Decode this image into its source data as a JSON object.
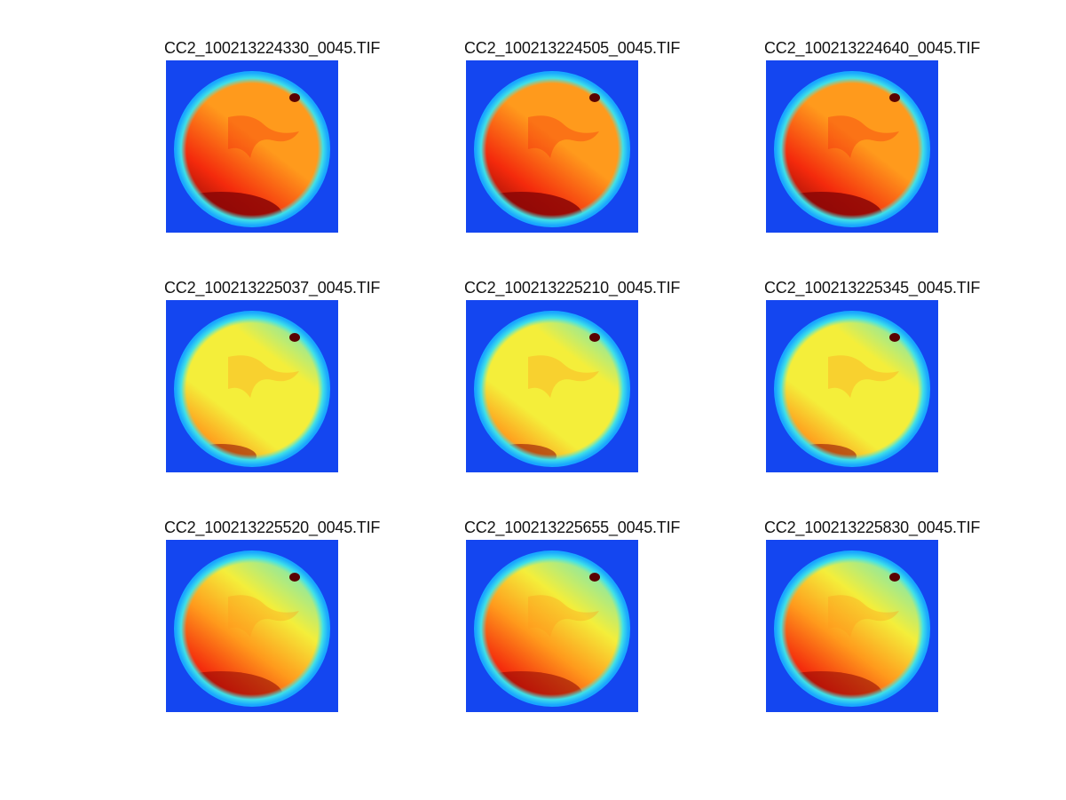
{
  "figure": {
    "panels": [
      {
        "title": "CC2_100213224330_0045.TIF",
        "palette": "hot"
      },
      {
        "title": "CC2_100213224505_0045.TIF",
        "palette": "hot"
      },
      {
        "title": "CC2_100213224640_0045.TIF",
        "palette": "hot"
      },
      {
        "title": "CC2_100213225037_0045.TIF",
        "palette": "cool"
      },
      {
        "title": "CC2_100213225210_0045.TIF",
        "palette": "cool"
      },
      {
        "title": "CC2_100213225345_0045.TIF",
        "palette": "cool"
      },
      {
        "title": "CC2_100213225520_0045.TIF",
        "palette": "warm"
      },
      {
        "title": "CC2_100213225655_0045.TIF",
        "palette": "warm"
      },
      {
        "title": "CC2_100213225830_0045.TIF",
        "palette": "warm"
      }
    ],
    "colors": {
      "background": "#1446f0",
      "rim_outer": "#19a8ff",
      "rim_inner": "#3fe0e8",
      "cyan": "#56e6d8",
      "yellow": "#f4ee3a",
      "orange": "#ff9a1c",
      "red": "#f42a0c",
      "dark_red": "#8a0606"
    }
  }
}
